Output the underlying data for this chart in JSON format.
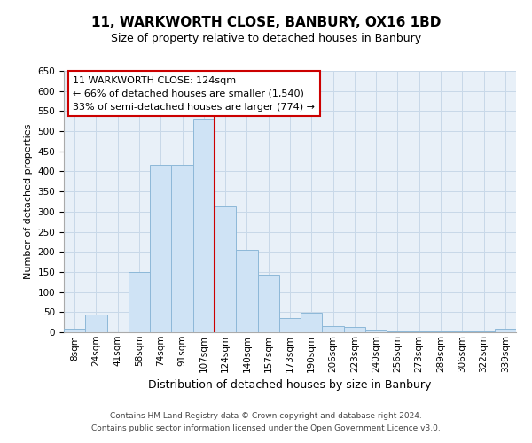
{
  "title": "11, WARKWORTH CLOSE, BANBURY, OX16 1BD",
  "subtitle": "Size of property relative to detached houses in Banbury",
  "xlabel": "Distribution of detached houses by size in Banbury",
  "ylabel": "Number of detached properties",
  "bin_labels": [
    "8sqm",
    "24sqm",
    "41sqm",
    "58sqm",
    "74sqm",
    "91sqm",
    "107sqm",
    "124sqm",
    "140sqm",
    "157sqm",
    "173sqm",
    "190sqm",
    "206sqm",
    "223sqm",
    "240sqm",
    "256sqm",
    "273sqm",
    "289sqm",
    "306sqm",
    "322sqm",
    "339sqm"
  ],
  "bar_heights": [
    8,
    44,
    0,
    150,
    417,
    417,
    530,
    313,
    205,
    143,
    35,
    49,
    15,
    13,
    5,
    2,
    2,
    2,
    2,
    2,
    8
  ],
  "bar_color": "#cfe3f5",
  "bar_edge_color": "#8db8d8",
  "vline_x_index": 7,
  "vline_color": "#cc0000",
  "annotation_title": "11 WARKWORTH CLOSE: 124sqm",
  "annotation_line1": "← 66% of detached houses are smaller (1,540)",
  "annotation_line2": "33% of semi-detached houses are larger (774) →",
  "annotation_box_facecolor": "#ffffff",
  "annotation_box_edgecolor": "#cc0000",
  "ylim": [
    0,
    650
  ],
  "yticks": [
    0,
    50,
    100,
    150,
    200,
    250,
    300,
    350,
    400,
    450,
    500,
    550,
    600,
    650
  ],
  "footer_line1": "Contains HM Land Registry data © Crown copyright and database right 2024.",
  "footer_line2": "Contains public sector information licensed under the Open Government Licence v3.0.",
  "bg_color": "#ffffff",
  "grid_color": "#c8d8e8",
  "grid_bg_color": "#e8f0f8",
  "title_fontsize": 11,
  "subtitle_fontsize": 9,
  "ylabel_fontsize": 8,
  "xlabel_fontsize": 9,
  "tick_fontsize": 7.5,
  "footer_fontsize": 6.5,
  "ann_fontsize": 8
}
